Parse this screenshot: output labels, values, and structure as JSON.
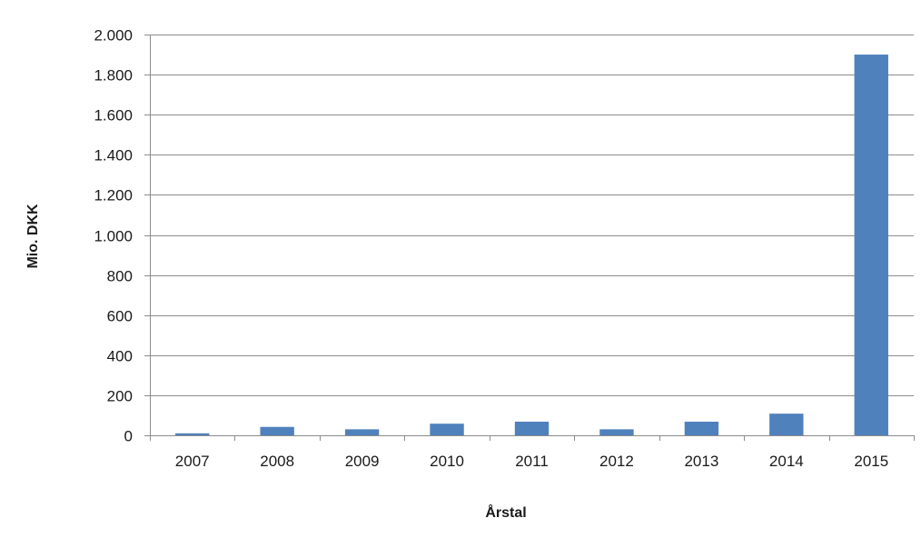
{
  "chart_data": {
    "type": "bar",
    "title": "",
    "xlabel": "Årstal",
    "ylabel": "Mio. DKK",
    "categories": [
      "2007",
      "2008",
      "2009",
      "2010",
      "2011",
      "2012",
      "2013",
      "2014",
      "2015"
    ],
    "values": [
      10,
      42,
      30,
      58,
      68,
      30,
      68,
      108,
      1900
    ],
    "ylim": [
      0,
      2000
    ],
    "yticks": [
      0,
      200,
      400,
      600,
      800,
      1000,
      1200,
      1400,
      1600,
      1800,
      2000
    ],
    "ytick_labels": [
      "0",
      "200",
      "400",
      "600",
      "800",
      "1.000",
      "1.200",
      "1.400",
      "1.600",
      "1.800",
      "2.000"
    ],
    "bar_color": "#4f81bd",
    "grid_color": "#8c8c8c",
    "grid": true,
    "legend": "none"
  }
}
